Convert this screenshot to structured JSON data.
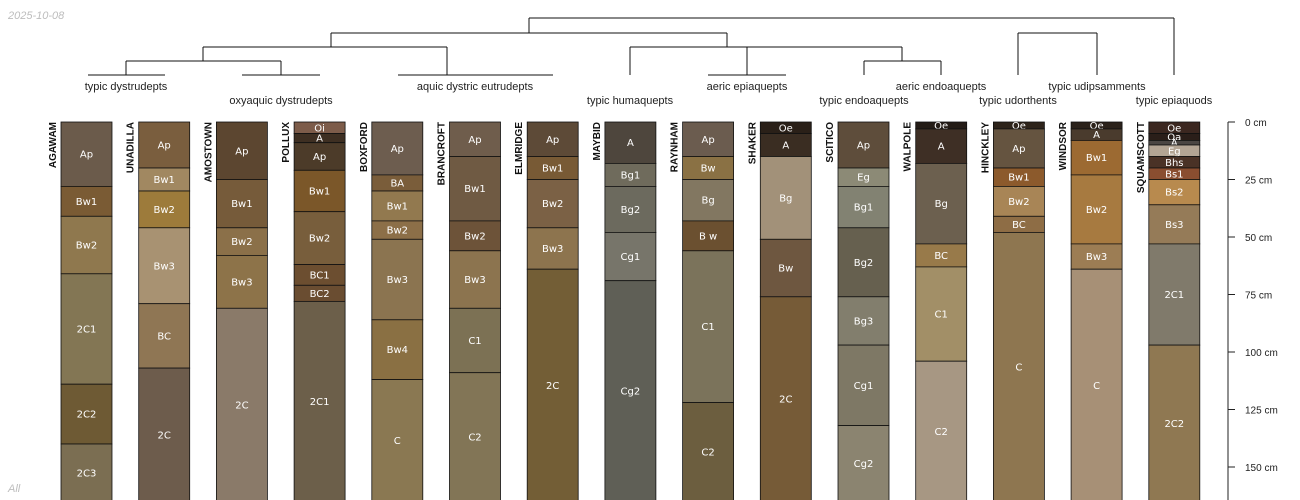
{
  "date_label": "2025-10-08",
  "corner_label": "All",
  "depth_axis": {
    "unit": "cm",
    "max": 160,
    "ticks": [
      {
        "value": 0,
        "label": "0 cm"
      },
      {
        "value": 25,
        "label": "25 cm"
      },
      {
        "value": 50,
        "label": "50 cm"
      },
      {
        "value": 75,
        "label": "75 cm"
      },
      {
        "value": 100,
        "label": "100 cm"
      },
      {
        "value": 125,
        "label": "125 cm"
      },
      {
        "value": 150,
        "label": "150 cm"
      }
    ]
  },
  "taxa": [
    {
      "id": "t1",
      "label": "typic dystrudepts"
    },
    {
      "id": "t2",
      "label": "oxyaquic dystrudepts"
    },
    {
      "id": "t3",
      "label": "aquic dystric eutrudepts"
    },
    {
      "id": "t4",
      "label": "typic humaquepts"
    },
    {
      "id": "t5",
      "label": "aeric epiaquepts"
    },
    {
      "id": "t6",
      "label": "typic endoaquepts"
    },
    {
      "id": "t7",
      "label": "aeric endoaquepts"
    },
    {
      "id": "t8",
      "label": "typic udorthents"
    },
    {
      "id": "t9",
      "label": "typic udipsamments"
    },
    {
      "id": "t10",
      "label": "typic epiaquods"
    }
  ],
  "profiles": [
    {
      "name": "AGAWAM",
      "horizons": [
        {
          "name": "Ap",
          "top": 0,
          "bottom": 28,
          "color": "#6b5b4b"
        },
        {
          "name": "Bw1",
          "top": 28,
          "bottom": 41,
          "color": "#7a5b34"
        },
        {
          "name": "Bw2",
          "top": 41,
          "bottom": 66,
          "color": "#8f784e"
        },
        {
          "name": "2C1",
          "top": 66,
          "bottom": 114,
          "color": "#837654"
        },
        {
          "name": "2C2",
          "top": 114,
          "bottom": 140,
          "color": "#6e5a34"
        },
        {
          "name": "2C3",
          "top": 140,
          "bottom": 165,
          "color": "#7b6e52"
        }
      ]
    },
    {
      "name": "UNADILLA",
      "horizons": [
        {
          "name": "Ap",
          "top": 0,
          "bottom": 20,
          "color": "#7a5e3e"
        },
        {
          "name": "Bw1",
          "top": 20,
          "bottom": 30,
          "color": "#a18861"
        },
        {
          "name": "Bw2",
          "top": 30,
          "bottom": 46,
          "color": "#9d7b3b"
        },
        {
          "name": "Bw3",
          "top": 46,
          "bottom": 79,
          "color": "#a89272"
        },
        {
          "name": "BC",
          "top": 79,
          "bottom": 107,
          "color": "#8f7654"
        },
        {
          "name": "2C",
          "top": 107,
          "bottom": 165,
          "color": "#6d5c4c"
        }
      ]
    },
    {
      "name": "AMOSTOWN",
      "horizons": [
        {
          "name": "Ap",
          "top": 0,
          "bottom": 25,
          "color": "#5c4630"
        },
        {
          "name": "Bw1",
          "top": 25,
          "bottom": 46,
          "color": "#765b3a"
        },
        {
          "name": "Bw2",
          "top": 46,
          "bottom": 58,
          "color": "#8b7049"
        },
        {
          "name": "Bw3",
          "top": 58,
          "bottom": 81,
          "color": "#8d7349"
        },
        {
          "name": "2C",
          "top": 81,
          "bottom": 165,
          "color": "#8a7a69"
        }
      ]
    },
    {
      "name": "POLLUX",
      "horizons": [
        {
          "name": "Oi",
          "top": 0,
          "bottom": 5,
          "color": "#7d5c4a"
        },
        {
          "name": "A",
          "top": 5,
          "bottom": 9,
          "color": "#3e2f22"
        },
        {
          "name": "Ap",
          "top": 9,
          "bottom": 21,
          "color": "#4c3b29"
        },
        {
          "name": "Bw1",
          "top": 21,
          "bottom": 39,
          "color": "#7b5729"
        },
        {
          "name": "Bw2",
          "top": 39,
          "bottom": 62,
          "color": "#785e3c"
        },
        {
          "name": "BC1",
          "top": 62,
          "bottom": 71,
          "color": "#6c4e30"
        },
        {
          "name": "BC2",
          "top": 71,
          "bottom": 78,
          "color": "#6a4d31"
        },
        {
          "name": "2C1",
          "top": 78,
          "bottom": 165,
          "color": "#6c5f4a"
        }
      ]
    },
    {
      "name": "BOXFORD",
      "horizons": [
        {
          "name": "Ap",
          "top": 0,
          "bottom": 23,
          "color": "#6d5d4f"
        },
        {
          "name": "BA",
          "top": 23,
          "bottom": 30,
          "color": "#7a5d3a"
        },
        {
          "name": "Bw1",
          "top": 30,
          "bottom": 43,
          "color": "#92794f"
        },
        {
          "name": "Bw2",
          "top": 43,
          "bottom": 51,
          "color": "#8c6f48"
        },
        {
          "name": "Bw3",
          "top": 51,
          "bottom": 86,
          "color": "#8b7450"
        },
        {
          "name": "Bw4",
          "top": 86,
          "bottom": 112,
          "color": "#8a7043"
        },
        {
          "name": "C",
          "top": 112,
          "bottom": 165,
          "color": "#8a7852"
        }
      ]
    },
    {
      "name": "BRANCROFT",
      "horizons": [
        {
          "name": "Ap",
          "top": 0,
          "bottom": 15,
          "color": "#6f5d4c"
        },
        {
          "name": "Bw1",
          "top": 15,
          "bottom": 43,
          "color": "#6f5a43"
        },
        {
          "name": "Bw2",
          "top": 43,
          "bottom": 56,
          "color": "#6d5339"
        },
        {
          "name": "Bw3",
          "top": 56,
          "bottom": 81,
          "color": "#8c744f"
        },
        {
          "name": "C1",
          "top": 81,
          "bottom": 109,
          "color": "#7c7154"
        },
        {
          "name": "C2",
          "top": 109,
          "bottom": 165,
          "color": "#827556"
        }
      ]
    },
    {
      "name": "ELMRIDGE",
      "horizons": [
        {
          "name": "Ap",
          "top": 0,
          "bottom": 15,
          "color": "#5d4a37"
        },
        {
          "name": "Bw1",
          "top": 15,
          "bottom": 25,
          "color": "#785a35"
        },
        {
          "name": "Bw2",
          "top": 25,
          "bottom": 46,
          "color": "#7b6145"
        },
        {
          "name": "Bw3",
          "top": 46,
          "bottom": 64,
          "color": "#8d744e"
        },
        {
          "name": "2C",
          "top": 64,
          "bottom": 165,
          "color": "#735e36"
        }
      ]
    },
    {
      "name": "MAYBID",
      "horizons": [
        {
          "name": "A",
          "top": 0,
          "bottom": 18,
          "color": "#4e463d"
        },
        {
          "name": "Bg1",
          "top": 18,
          "bottom": 28,
          "color": "#6f6b5c"
        },
        {
          "name": "Bg2",
          "top": 28,
          "bottom": 48,
          "color": "#6c6a5e"
        },
        {
          "name": "Cg1",
          "top": 48,
          "bottom": 69,
          "color": "#77756a"
        },
        {
          "name": "Cg2",
          "top": 69,
          "bottom": 165,
          "color": "#5f5f56"
        }
      ]
    },
    {
      "name": "RAYNHAM",
      "horizons": [
        {
          "name": "Ap",
          "top": 0,
          "bottom": 15,
          "color": "#6b5c4f"
        },
        {
          "name": "Bw",
          "top": 15,
          "bottom": 25,
          "color": "#8a7144"
        },
        {
          "name": "Bg",
          "top": 25,
          "bottom": 43,
          "color": "#827761"
        },
        {
          "name": "B w",
          "top": 43,
          "bottom": 56,
          "color": "#6b5030"
        },
        {
          "name": "C1",
          "top": 56,
          "bottom": 122,
          "color": "#7b735b"
        },
        {
          "name": "C2",
          "top": 122,
          "bottom": 165,
          "color": "#6c5e3f"
        }
      ]
    },
    {
      "name": "SHAKER",
      "horizons": [
        {
          "name": "Oe",
          "top": 0,
          "bottom": 5,
          "color": "#2a2018"
        },
        {
          "name": "A",
          "top": 5,
          "bottom": 15,
          "color": "#3a2d22"
        },
        {
          "name": "Bg",
          "top": 15,
          "bottom": 51,
          "color": "#a29179"
        },
        {
          "name": "Bw",
          "top": 51,
          "bottom": 76,
          "color": "#6e5740"
        },
        {
          "name": "2C",
          "top": 76,
          "bottom": 165,
          "color": "#765b37"
        }
      ]
    },
    {
      "name": "SCITICO",
      "horizons": [
        {
          "name": "Ap",
          "top": 0,
          "bottom": 20,
          "color": "#5e4d3b"
        },
        {
          "name": "Eg",
          "top": 20,
          "bottom": 28,
          "color": "#8c8a76"
        },
        {
          "name": "Bg1",
          "top": 28,
          "bottom": 46,
          "color": "#828272"
        },
        {
          "name": "Bg2",
          "top": 46,
          "bottom": 76,
          "color": "#66604f"
        },
        {
          "name": "Bg3",
          "top": 76,
          "bottom": 97,
          "color": "#827e6d"
        },
        {
          "name": "Cg1",
          "top": 97,
          "bottom": 132,
          "color": "#7e7865"
        },
        {
          "name": "Cg2",
          "top": 132,
          "bottom": 165,
          "color": "#8b8470"
        }
      ]
    },
    {
      "name": "WALPOLE",
      "horizons": [
        {
          "name": "Oe",
          "top": 0,
          "bottom": 3,
          "color": "#241c16"
        },
        {
          "name": "A",
          "top": 3,
          "bottom": 18,
          "color": "#3e2f25"
        },
        {
          "name": "Bg",
          "top": 18,
          "bottom": 53,
          "color": "#6c604f"
        },
        {
          "name": "BC",
          "top": 53,
          "bottom": 63,
          "color": "#987a4a"
        },
        {
          "name": "C1",
          "top": 63,
          "bottom": 104,
          "color": "#a28f67"
        },
        {
          "name": "C2",
          "top": 104,
          "bottom": 165,
          "color": "#a79783"
        }
      ]
    },
    {
      "name": "HINCKLEY",
      "horizons": [
        {
          "name": "Oe",
          "top": 0,
          "bottom": 3,
          "color": "#2e241b"
        },
        {
          "name": "Ap",
          "top": 3,
          "bottom": 20,
          "color": "#655440"
        },
        {
          "name": "Bw1",
          "top": 20,
          "bottom": 28,
          "color": "#8c5a2c"
        },
        {
          "name": "Bw2",
          "top": 28,
          "bottom": 41,
          "color": "#a88556"
        },
        {
          "name": "BC",
          "top": 41,
          "bottom": 48,
          "color": "#8e6d45"
        },
        {
          "name": "C",
          "top": 48,
          "bottom": 165,
          "color": "#8e7650"
        }
      ]
    },
    {
      "name": "WINDSOR",
      "horizons": [
        {
          "name": "Oe",
          "top": 0,
          "bottom": 3,
          "color": "#2b221b"
        },
        {
          "name": "A",
          "top": 3,
          "bottom": 8,
          "color": "#4a3b2d"
        },
        {
          "name": "Bw1",
          "top": 8,
          "bottom": 23,
          "color": "#9c6a32"
        },
        {
          "name": "Bw2",
          "top": 23,
          "bottom": 53,
          "color": "#a77a40"
        },
        {
          "name": "Bw3",
          "top": 53,
          "bottom": 64,
          "color": "#9c7d54"
        },
        {
          "name": "C",
          "top": 64,
          "bottom": 165,
          "color": "#a79076"
        }
      ]
    },
    {
      "name": "SQUAMSCOTT",
      "horizons": [
        {
          "name": "Oe",
          "top": 0,
          "bottom": 5,
          "color": "#3b2720"
        },
        {
          "name": "Oa",
          "top": 5,
          "bottom": 8,
          "color": "#2a1e19"
        },
        {
          "name": "A",
          "top": 8,
          "bottom": 10,
          "color": "#4a4643"
        },
        {
          "name": "Eg",
          "top": 10,
          "bottom": 15,
          "color": "#b3a594"
        },
        {
          "name": "Bhs",
          "top": 15,
          "bottom": 20,
          "color": "#4a3226"
        },
        {
          "name": "Bs1",
          "top": 20,
          "bottom": 25,
          "color": "#8a4e30"
        },
        {
          "name": "Bs2",
          "top": 25,
          "bottom": 36,
          "color": "#b88a4e"
        },
        {
          "name": "Bs3",
          "top": 36,
          "bottom": 53,
          "color": "#957b58"
        },
        {
          "name": "2C1",
          "top": 53,
          "bottom": 97,
          "color": "#807a6b"
        },
        {
          "name": "2C2",
          "top": 97,
          "bottom": 165,
          "color": "#8f7852"
        }
      ]
    }
  ]
}
